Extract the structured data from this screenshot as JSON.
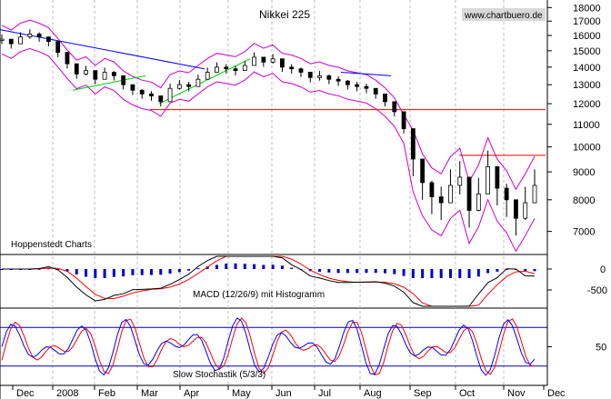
{
  "chart_data": {
    "type": "candlestick",
    "title": "Nikkei 225",
    "source": "www.chartbuero.de",
    "credit": "Hoppenstedt Charts",
    "x_axis_labels": [
      "Dec",
      "2008",
      "Feb",
      "Mar",
      "Apr",
      "May",
      "Jun",
      "Jul",
      "Aug",
      "Sep",
      "Oct",
      "Nov",
      "Dec"
    ],
    "price_panel": {
      "y_tick_labels": [
        "18000",
        "17000",
        "16000",
        "15000",
        "14000",
        "13000",
        "12000",
        "11000",
        "10000",
        "9000",
        "8000",
        "7000"
      ],
      "ylim": [
        6400,
        18300
      ],
      "close_series": [
        15750,
        15450,
        15900,
        16100,
        15900,
        15600,
        14900,
        14200,
        13600,
        13800,
        13300,
        13700,
        13500,
        13000,
        12700,
        12500,
        12400,
        12100,
        12800,
        13000,
        12900,
        13300,
        13700,
        14000,
        13900,
        13800,
        14100,
        14600,
        14300,
        14500,
        14000,
        13900,
        13700,
        13400,
        13500,
        13300,
        13200,
        13000,
        12900,
        12800,
        12500,
        12100,
        11600,
        10800,
        9500,
        8600,
        8100,
        7900,
        8500,
        8800,
        7650,
        8200,
        9200,
        8400,
        8000,
        7400,
        7900,
        8500
      ],
      "horizontal_levels": [
        11700,
        9650
      ],
      "level_color": "#ff0000",
      "trendline_color": "#0000ff",
      "short_trend_color": "#00cc00",
      "band_color": "#cc00cc",
      "bar_color": "#000000"
    },
    "macd_panel": {
      "label": "MACD (12/26/9) mit Histogramm",
      "y_tick_labels": [
        "0",
        "-500"
      ],
      "macd_color": "#000000",
      "signal_color": "#ff0000",
      "histogram_color": "#0000cc"
    },
    "stochastic_panel": {
      "label": "Slow Stochastik (5/3/3)",
      "y_tick_labels": [
        "50"
      ],
      "upper_band": 80,
      "lower_band": 20,
      "k_color": "#0000ff",
      "d_color": "#ff0000"
    },
    "grid": "vertical dashed at months"
  }
}
